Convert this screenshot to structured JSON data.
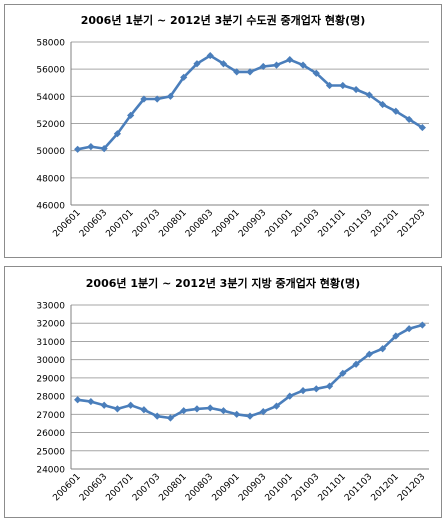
{
  "chart_data": [
    {
      "type": "line",
      "title": "2006년 1분기 ~ 2012년 3분기 수도권 중개업자 현황(명)",
      "xlabel": "",
      "ylabel": "",
      "ylim": [
        46000,
        58000
      ],
      "yticks": [
        "46000",
        "48000",
        "50000",
        "52000",
        "54000",
        "56000",
        "58000"
      ],
      "xtick_labels": [
        "200601",
        "200603",
        "200701",
        "200703",
        "200801",
        "200803",
        "200901",
        "200903",
        "201001",
        "201003",
        "201101",
        "201103",
        "201201",
        "201203"
      ],
      "grid": "horizontal",
      "color": "#4a7ebb",
      "x": [
        "200601",
        "200602",
        "200603",
        "200604",
        "200701",
        "200702",
        "200703",
        "200704",
        "200801",
        "200802",
        "200803",
        "200804",
        "200901",
        "200902",
        "200903",
        "200904",
        "201001",
        "201002",
        "201003",
        "201004",
        "201101",
        "201102",
        "201103",
        "201104",
        "201201",
        "201202",
        "201203"
      ],
      "series": [
        {
          "values": [
            50100,
            50300,
            50150,
            51250,
            52600,
            53800,
            53800,
            54000,
            55400,
            56400,
            57000,
            56400,
            55800,
            55800,
            56200,
            56300,
            56700,
            56300,
            55700,
            54800,
            54800,
            54500,
            54100,
            53400,
            52900,
            52300,
            51700
          ]
        }
      ]
    },
    {
      "type": "line",
      "title": "2006년 1분기 ~ 2012년 3분기 지방 중개업자 현황(명)",
      "xlabel": "",
      "ylabel": "",
      "ylim": [
        24000,
        33000
      ],
      "yticks": [
        "24000",
        "25000",
        "26000",
        "27000",
        "28000",
        "29000",
        "30000",
        "31000",
        "32000",
        "33000"
      ],
      "xtick_labels": [
        "200601",
        "200603",
        "200701",
        "200703",
        "200801",
        "200803",
        "200901",
        "200903",
        "201001",
        "201003",
        "201101",
        "201103",
        "201201",
        "201203"
      ],
      "grid": "horizontal",
      "color": "#4a7ebb",
      "x": [
        "200601",
        "200602",
        "200603",
        "200604",
        "200701",
        "200702",
        "200703",
        "200704",
        "200801",
        "200802",
        "200803",
        "200804",
        "200901",
        "200902",
        "200903",
        "200904",
        "201001",
        "201002",
        "201003",
        "201004",
        "201101",
        "201102",
        "201103",
        "201104",
        "201201",
        "201202",
        "201203"
      ],
      "series": [
        {
          "values": [
            27800,
            27700,
            27500,
            27300,
            27500,
            27250,
            26900,
            26800,
            27200,
            27300,
            27350,
            27200,
            27000,
            26900,
            27150,
            27450,
            28000,
            28300,
            28400,
            28550,
            29250,
            29750,
            30300,
            30600,
            31300,
            31700,
            31900
          ]
        }
      ]
    }
  ]
}
